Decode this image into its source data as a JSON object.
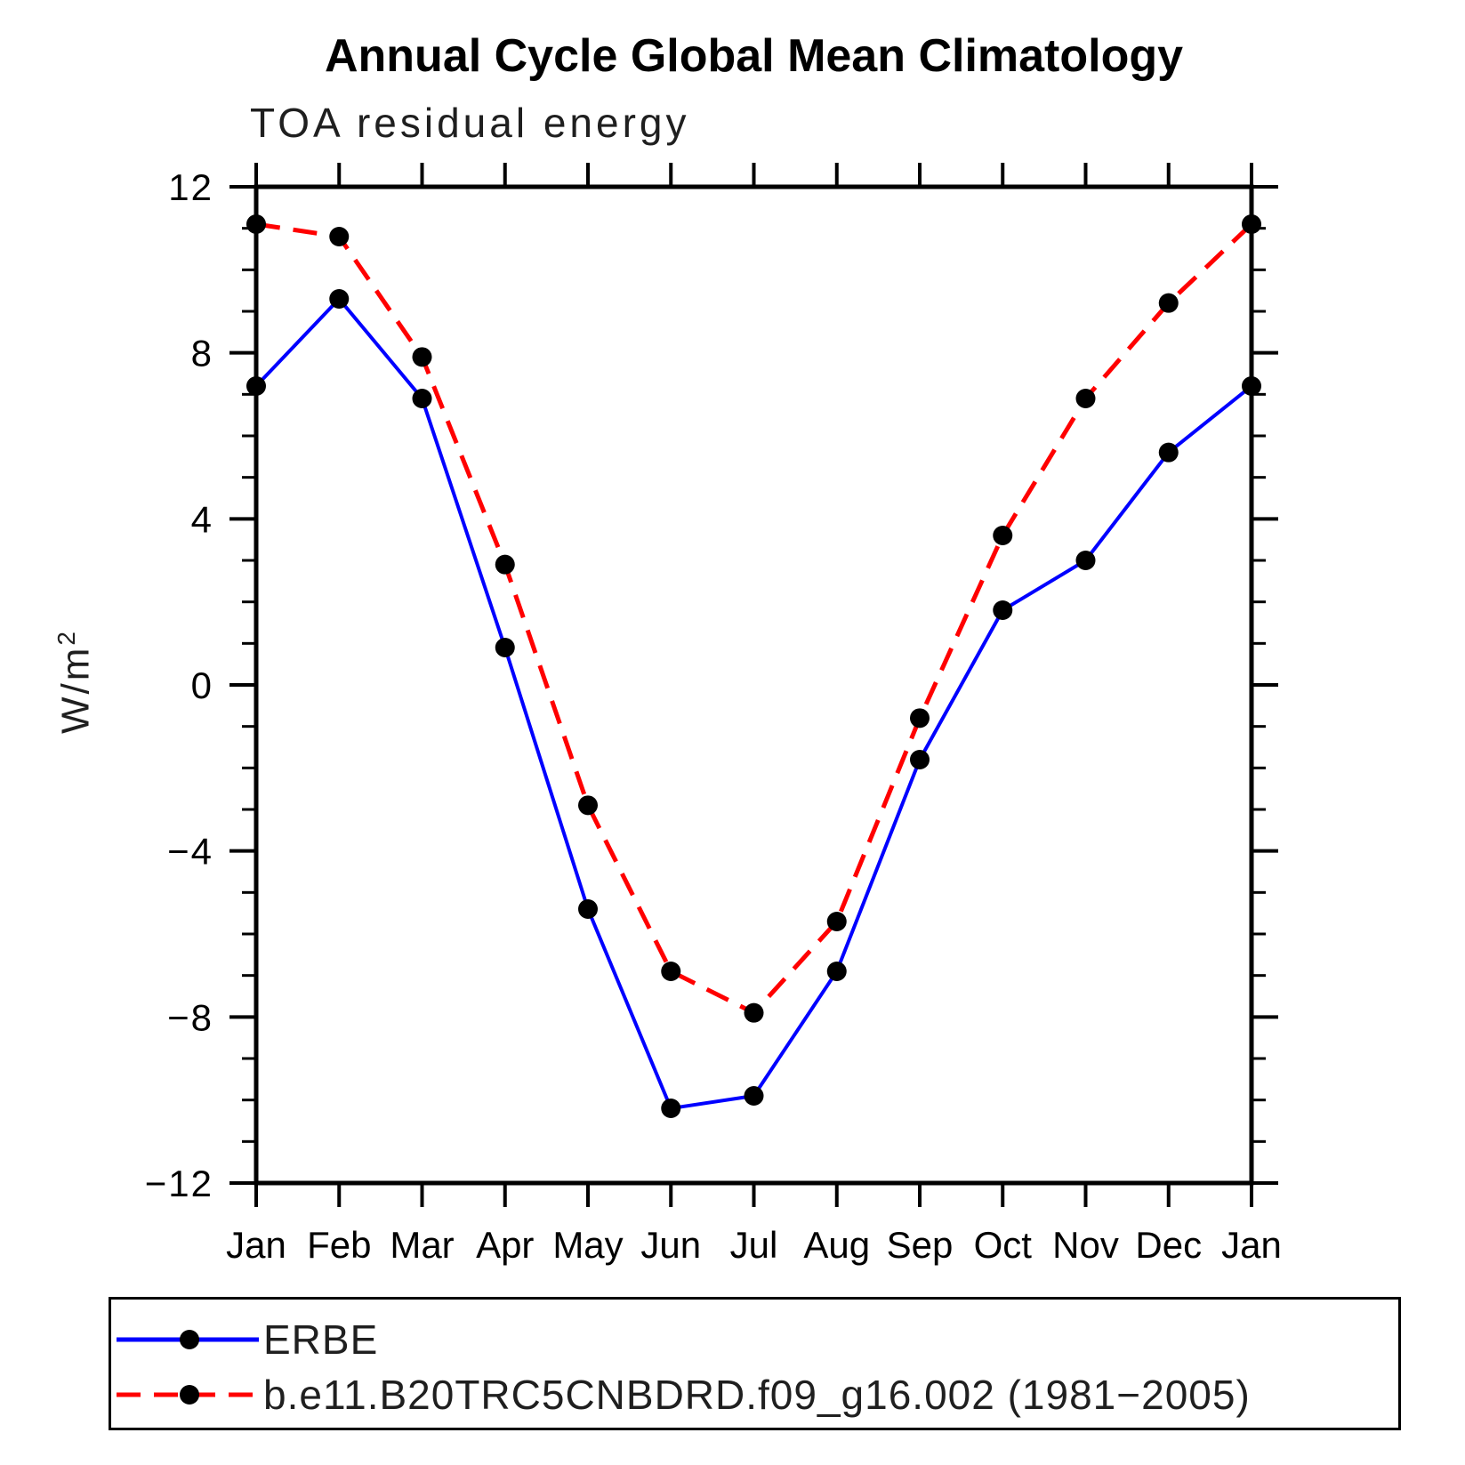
{
  "title": "Annual Cycle Global Mean Climatology",
  "subtitle": "TOA residual energy",
  "y_axis_label": {
    "base": "W/m",
    "exponent": "2"
  },
  "chart_data": {
    "type": "line",
    "title": "Annual Cycle Global Mean Climatology",
    "subtitle": "TOA residual energy",
    "ylabel": "W/m^2",
    "xlabel": "",
    "x_categories": [
      "Jan",
      "Feb",
      "Mar",
      "Apr",
      "May",
      "Jun",
      "Jul",
      "Aug",
      "Sep",
      "Oct",
      "Nov",
      "Dec",
      "Jan"
    ],
    "ylim": [
      -12,
      12
    ],
    "ytick_major": [
      12,
      8,
      4,
      0,
      -4,
      -8,
      -12
    ],
    "ytick_labels": [
      "12",
      "8",
      "4",
      "0",
      "−4",
      "−8",
      "−12"
    ],
    "ytick_minor_step": 1,
    "grid": false,
    "legend_position": "bottom",
    "background_color": "#ffffff",
    "axis_color": "#000000",
    "text_color": "#000000",
    "series": [
      {
        "name": "ERBE",
        "color": "#0000ff",
        "line_style": "solid",
        "line_width": 4,
        "marker": "filled-circle",
        "marker_color": "#000000",
        "values": [
          7.2,
          9.3,
          6.9,
          0.9,
          -5.4,
          -10.2,
          -9.9,
          -6.9,
          -1.8,
          1.8,
          3.0,
          5.6,
          7.2
        ]
      },
      {
        "name": "b.e11.B20TRC5CNBDRD.f09_g16.002 (1981−2005)",
        "color": "#ff0000",
        "line_style": "dashed",
        "line_width": 5,
        "marker": "filled-circle",
        "marker_color": "#000000",
        "values": [
          11.1,
          10.8,
          7.9,
          2.9,
          -2.9,
          -6.9,
          -7.9,
          -5.7,
          -0.8,
          3.6,
          6.9,
          9.2,
          11.1
        ]
      }
    ]
  }
}
